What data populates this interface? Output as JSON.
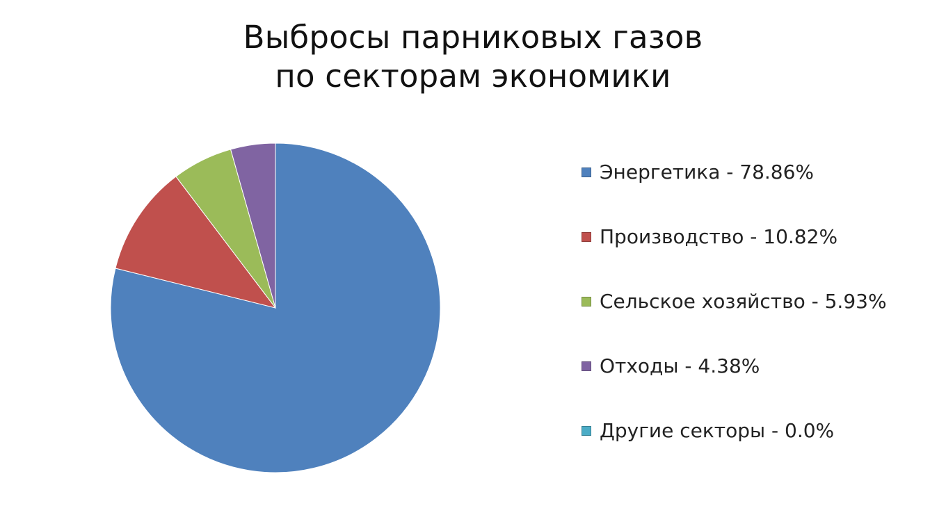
{
  "chart_data": {
    "type": "pie",
    "title": "Выбросы парниковых газов по секторам экономики",
    "title_lines": [
      "Выбросы парниковых газов",
      "по секторам экономики"
    ],
    "legend_position": "right",
    "slices": [
      {
        "label": "Энергетика - 78.86%",
        "value": 78.86,
        "color": "#4f81bd"
      },
      {
        "label": "Производство - 10.82%",
        "value": 10.82,
        "color": "#c0504d"
      },
      {
        "label": "Сельское хозяйство - 5.93%",
        "value": 5.93,
        "color": "#9bbb59"
      },
      {
        "label": "Отходы - 4.38%",
        "value": 4.38,
        "color": "#8064a2"
      },
      {
        "label": "Другие секторы - 0.0%",
        "value": 0.0,
        "color": "#4bacc6"
      }
    ]
  }
}
